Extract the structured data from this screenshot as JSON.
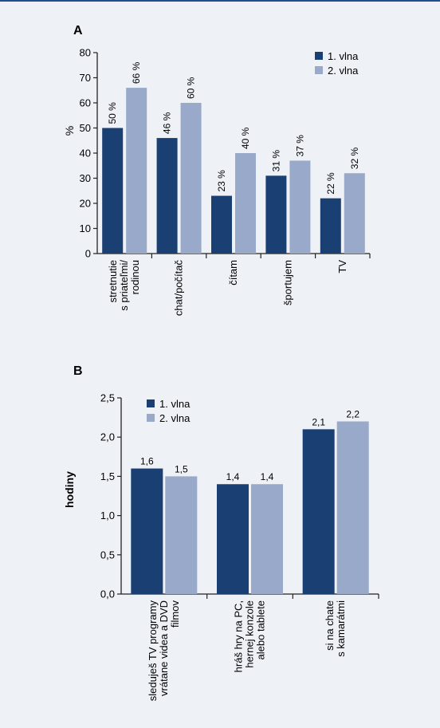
{
  "colors": {
    "wave1": "#1a3f73",
    "wave2": "#98a9c9",
    "axis": "#222222",
    "background": "#eef1f6",
    "border": "#1f4f8f"
  },
  "chart_data": [
    {
      "panel": "A",
      "type": "bar",
      "ylabel": "%",
      "xlabel": "",
      "ylim": [
        0,
        80
      ],
      "yticks": [
        "0",
        "10",
        "20",
        "30",
        "40",
        "50",
        "60",
        "70",
        "80"
      ],
      "categories": [
        [
          "stretnutie",
          "s priateľmi/",
          "rodinou"
        ],
        [
          "chat/počítač"
        ],
        [
          "čítam"
        ],
        [
          "športujem"
        ],
        [
          "TV"
        ]
      ],
      "series": [
        {
          "name": "1. vlna",
          "values": [
            50,
            46,
            23,
            31,
            22
          ],
          "labels": [
            "50 %",
            "46 %",
            "23 %",
            "31 %",
            "22 %"
          ]
        },
        {
          "name": "2. vlna",
          "values": [
            66,
            60,
            40,
            37,
            32
          ],
          "labels": [
            "66 %",
            "60 %",
            "40 %",
            "37 %",
            "32 %"
          ]
        }
      ],
      "legend_position": "top-right",
      "grid": false
    },
    {
      "panel": "B",
      "type": "bar",
      "ylabel": "hodiny",
      "xlabel": "",
      "ylim": [
        0,
        2.5
      ],
      "yticks": [
        "0,0",
        "0,5",
        "1,0",
        "1,5",
        "2,0",
        "2,5"
      ],
      "categories": [
        [
          "sleduješ TV programy",
          "vrátane videa a DVD",
          "filmov"
        ],
        [
          "hráš hry na PC,",
          "hernej konzole",
          "alebo tablete"
        ],
        [
          "si na chate",
          "s kamarátmi"
        ]
      ],
      "series": [
        {
          "name": "1. vlna",
          "values": [
            1.6,
            1.4,
            2.1
          ],
          "labels": [
            "1,6",
            "1,4",
            "2,1"
          ]
        },
        {
          "name": "2. vlna",
          "values": [
            1.5,
            1.4,
            2.2
          ],
          "labels": [
            "1,5",
            "1,4",
            "2,2"
          ]
        }
      ],
      "legend_position": "top-left",
      "grid": false
    }
  ]
}
